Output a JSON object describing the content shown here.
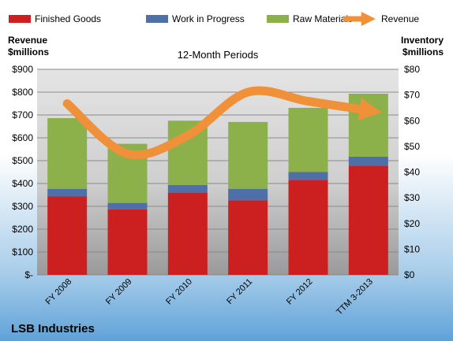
{
  "chart_data": {
    "type": "bar",
    "stacked": true,
    "title": "12-Month Periods",
    "company": "LSB Industries",
    "categories": [
      "FY 2008",
      "FY 2009",
      "FY 2010",
      "FY 2011",
      "FY 2012",
      "TTM 3-2013"
    ],
    "left_axis": {
      "label_line1": "Revenue",
      "label_line2": "$millions",
      "ylim": [
        0,
        900
      ],
      "ticks": [
        "$-",
        "$100",
        "$200",
        "$300",
        "$400",
        "$500",
        "$600",
        "$700",
        "$800",
        "$900"
      ]
    },
    "right_axis": {
      "label_line1": "Inventory",
      "label_line2": "$millions",
      "ylim": [
        0,
        80
      ],
      "ticks": [
        "$0",
        "$10",
        "$20",
        "$30",
        "$40",
        "$50",
        "$60",
        "$70",
        "$80"
      ]
    },
    "series": [
      {
        "name": "Finished Goods",
        "type": "bar",
        "axis": "right",
        "color": "#cc1f1f",
        "values": [
          30.5,
          25.5,
          32,
          29,
          37,
          42.5
        ]
      },
      {
        "name": "Work in Progress",
        "type": "bar",
        "axis": "right",
        "color": "#4f6fa8",
        "values": [
          3,
          2.5,
          3,
          4.5,
          3,
          3.5
        ]
      },
      {
        "name": "Raw Materials",
        "type": "bar",
        "axis": "right",
        "color": "#8cb04a",
        "values": [
          27.5,
          23,
          25,
          26,
          25,
          24.5
        ]
      },
      {
        "name": "Revenue",
        "type": "line",
        "axis": "left",
        "color": "#f0913a",
        "values": [
          750,
          530,
          610,
          800,
          760,
          720
        ]
      }
    ],
    "legend_position": "top",
    "grid": true
  }
}
